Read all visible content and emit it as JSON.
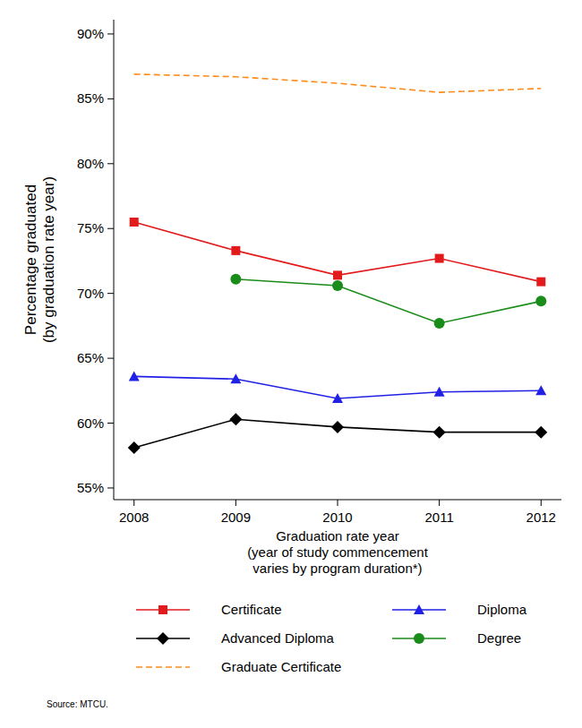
{
  "chart_data": {
    "type": "line",
    "ylabel": [
      "Percentage graduated",
      "(by graduation rate year)"
    ],
    "xlabel": [
      "Graduation rate year",
      "(year of study commencement",
      "varies by program duration*)"
    ],
    "source": "Source: MTCU.",
    "x": [
      2008,
      2009,
      2010,
      2011,
      2012
    ],
    "xlim": [
      2007.8,
      2012.2
    ],
    "xticks": [
      2008,
      2009,
      2010,
      2011,
      2012
    ],
    "ylim": [
      54.1,
      91.1
    ],
    "yticks": [
      {
        "value": 55,
        "label": "55%"
      },
      {
        "value": 60,
        "label": "60%"
      },
      {
        "value": 65,
        "label": "65%"
      },
      {
        "value": 70,
        "label": "70%"
      },
      {
        "value": 75,
        "label": "75%"
      },
      {
        "value": 80,
        "label": "80%"
      },
      {
        "value": 85,
        "label": "85%"
      },
      {
        "value": 90,
        "label": "90%"
      }
    ],
    "grid": false,
    "legend": "bottom",
    "series": [
      {
        "name": "Certificate",
        "color": "#e31a1c",
        "marker": "square",
        "line_style": "solid",
        "values": [
          75.5,
          73.3,
          71.4,
          72.7,
          70.9
        ]
      },
      {
        "name": "Diploma",
        "color": "#2121e6",
        "marker": "triangle",
        "line_style": "solid",
        "values": [
          63.6,
          63.4,
          61.9,
          62.4,
          62.5
        ]
      },
      {
        "name": "Advanced Diploma",
        "color": "#000000",
        "marker": "diamond",
        "line_style": "solid",
        "values": [
          58.1,
          60.3,
          59.7,
          59.3,
          59.3
        ]
      },
      {
        "name": "Degree",
        "color": "#1a8c1a",
        "marker": "circle",
        "line_style": "solid",
        "values": [
          null,
          71.1,
          70.6,
          67.7,
          69.4
        ]
      },
      {
        "name": "Graduate Certificate",
        "color": "#ff8c1a",
        "marker": "none",
        "line_style": "dashed",
        "values": [
          86.9,
          86.7,
          86.2,
          85.5,
          85.8
        ]
      }
    ]
  }
}
